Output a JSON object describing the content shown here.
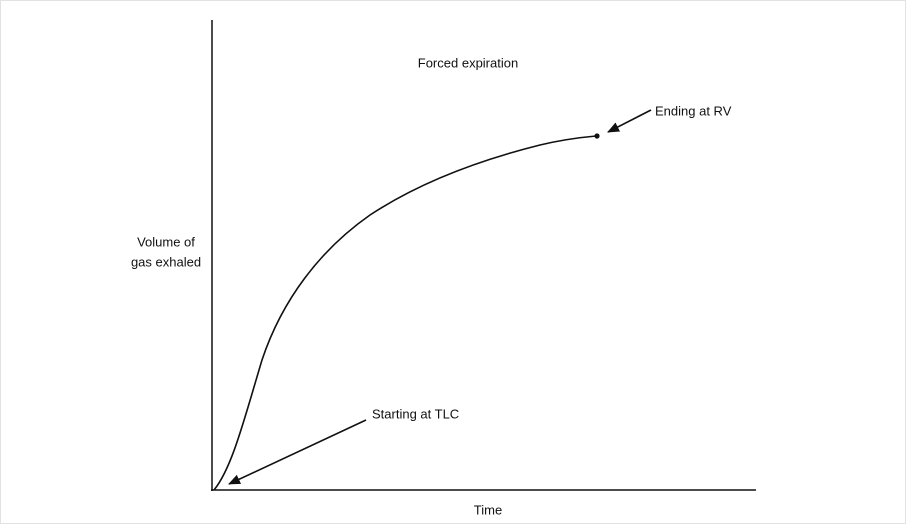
{
  "title": "Forced expiration",
  "axes": {
    "x_label": "Time",
    "y_label": [
      "Volume of",
      "gas exhaled"
    ]
  },
  "annotations": [
    {
      "label": "Ending at RV"
    },
    {
      "label": "Starting at TLC"
    }
  ]
}
